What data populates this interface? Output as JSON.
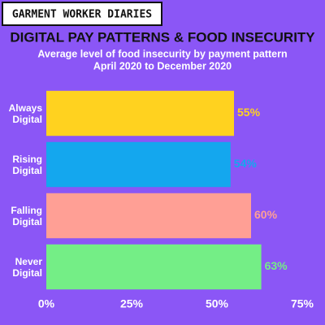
{
  "header": "GARMENT WORKER DIARIES",
  "chart_data": {
    "type": "hbar",
    "title": "DIGITAL PAY PATTERNS & FOOD INSECURITY",
    "subtitle": [
      "Average level of food insecurity by payment pattern",
      "April 2020 to December 2020"
    ],
    "categories": [
      "Always Digital",
      "Rising Digital",
      "Falling Digital",
      "Never Digital"
    ],
    "values": [
      55,
      54,
      60,
      63
    ],
    "value_labels": [
      "55%",
      "54%",
      "60%",
      "63%"
    ],
    "colors": [
      "#ffd21f",
      "#14a7ee",
      "#ff9f95",
      "#74ee86"
    ],
    "xlim": [
      0,
      75
    ],
    "xticks": [
      {
        "value": 0,
        "label": "0%"
      },
      {
        "value": 25,
        "label": "25%"
      },
      {
        "value": 50,
        "label": "50%"
      },
      {
        "value": 75,
        "label": "75%"
      }
    ],
    "grid": false
  }
}
